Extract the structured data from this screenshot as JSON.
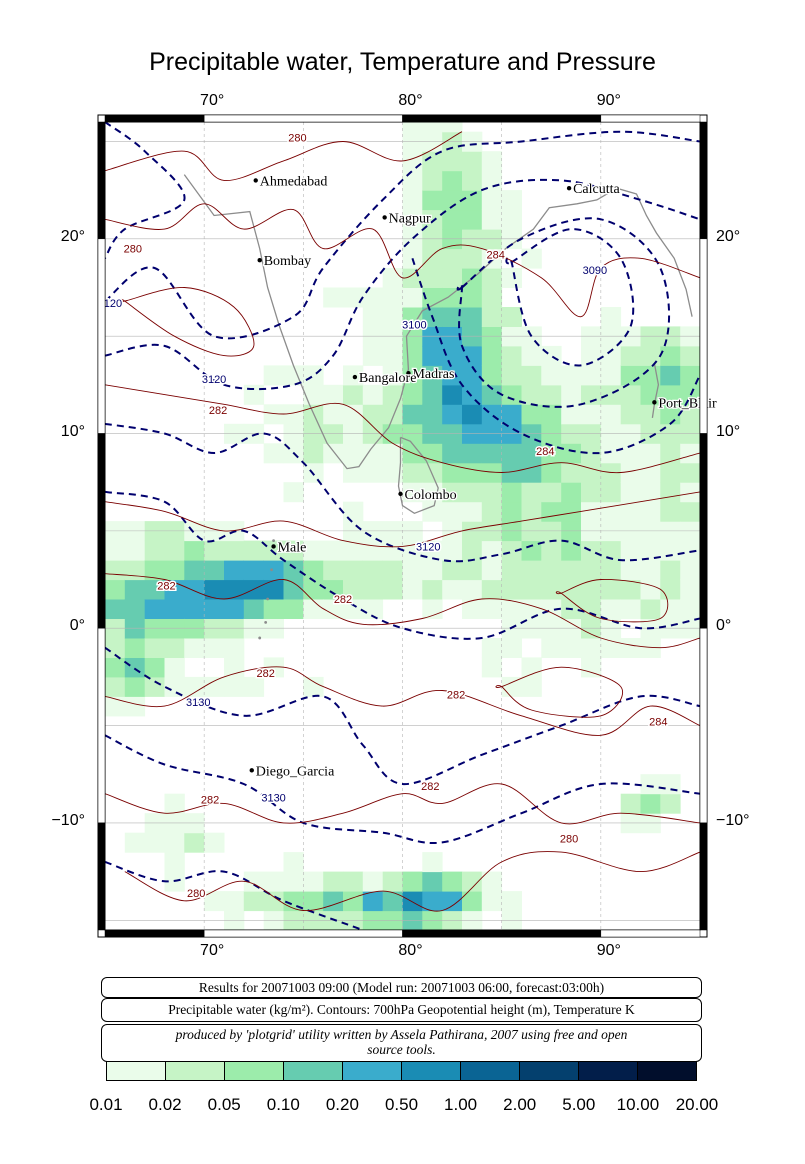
{
  "title": "Precipitable water, Temperature and Pressure",
  "map": {
    "lon_range": [
      65,
      95
    ],
    "lat_range": [
      -15.5,
      26
    ],
    "lon_ticks": [
      "70°",
      "80°",
      "90°"
    ],
    "lat_ticks": [
      "20°",
      "10°",
      "0°",
      "−10°"
    ],
    "grid": true,
    "cities": [
      {
        "name": "Ahmedabad",
        "lon": 72.6,
        "lat": 23.0
      },
      {
        "name": "Calcutta",
        "lon": 88.4,
        "lat": 22.6
      },
      {
        "name": "Nagpur",
        "lon": 79.1,
        "lat": 21.1
      },
      {
        "name": "Bombay",
        "lon": 72.8,
        "lat": 18.9
      },
      {
        "name": "Madras",
        "lon": 80.3,
        "lat": 13.1
      },
      {
        "name": "Bangalore",
        "lon": 77.6,
        "lat": 12.9
      },
      {
        "name": "Port_Blair",
        "lon": 92.7,
        "lat": 11.6
      },
      {
        "name": "Colombo",
        "lon": 79.9,
        "lat": 6.9
      },
      {
        "name": "Male",
        "lon": 73.5,
        "lat": 4.2
      },
      {
        "name": "Diego_Garcia",
        "lon": 72.4,
        "lat": -7.3
      }
    ],
    "contour_labels": [
      {
        "text": "280",
        "lon": 74.7,
        "lat": 25.0,
        "kind": "temp"
      },
      {
        "text": "280",
        "lon": 66.4,
        "lat": 19.3,
        "kind": "temp"
      },
      {
        "text": "284",
        "lon": 84.7,
        "lat": 19.0,
        "kind": "temp"
      },
      {
        "text": "3090",
        "lon": 89.7,
        "lat": 18.2,
        "kind": "height"
      },
      {
        "text": "3100",
        "lon": 80.6,
        "lat": 15.4,
        "kind": "height"
      },
      {
        "text": "3120",
        "lon": 70.5,
        "lat": 12.6,
        "kind": "height"
      },
      {
        "text": "282",
        "lon": 70.7,
        "lat": 11.0,
        "kind": "temp"
      },
      {
        "text": "284",
        "lon": 87.2,
        "lat": 8.9,
        "kind": "temp"
      },
      {
        "text": "3120",
        "lon": 81.3,
        "lat": 4.0,
        "kind": "height"
      },
      {
        "text": "282",
        "lon": 68.1,
        "lat": 2.0,
        "kind": "temp"
      },
      {
        "text": "282",
        "lon": 77.0,
        "lat": 1.3,
        "kind": "temp"
      },
      {
        "text": "282",
        "lon": 73.1,
        "lat": -2.5,
        "kind": "temp"
      },
      {
        "text": "282",
        "lon": 82.7,
        "lat": -3.6,
        "kind": "temp"
      },
      {
        "text": "3130",
        "lon": 69.7,
        "lat": -4.0,
        "kind": "height"
      },
      {
        "text": "284",
        "lon": 92.9,
        "lat": -5.0,
        "kind": "temp"
      },
      {
        "text": "282",
        "lon": 81.4,
        "lat": -8.3,
        "kind": "temp"
      },
      {
        "text": "3130",
        "lon": 73.5,
        "lat": -8.9,
        "kind": "height"
      },
      {
        "text": "282",
        "lon": 70.3,
        "lat": -9.0,
        "kind": "temp"
      },
      {
        "text": "280",
        "lon": 88.4,
        "lat": -11.0,
        "kind": "temp"
      },
      {
        "text": "280",
        "lon": 69.6,
        "lat": -13.8,
        "kind": "temp"
      },
      {
        "text": "120",
        "lon": 65.4,
        "lat": 16.5,
        "kind": "height"
      }
    ],
    "colors": {
      "temperature_contour": "#7a0000",
      "height_contour": "#00006e",
      "coastline": "#8c8c8c",
      "grid": "#b4b4b4"
    }
  },
  "info": {
    "results_line": "Results for 20071003 09:00 (Model run: 20071003 06:00, forecast:03:00h)",
    "legend_description": "Precipitable water (kg/m²).  Contours: 700hPa Geopotential height (m), Temperature K",
    "credit_line1": "produced by 'plotgrid' utility written by Assela Pathirana, 2007 using free and open",
    "credit_line2": "source tools."
  },
  "colorbar": {
    "labels": [
      "0.01",
      "0.02",
      "0.05",
      "0.10",
      "0.20",
      "0.50",
      "1.00",
      "2.00",
      "5.00",
      "10.00",
      "20.00"
    ],
    "colors": [
      "#eafcea",
      "#c6f4c6",
      "#9cecab",
      "#66ccb0",
      "#3aaccc",
      "#1a8cb4",
      "#0a6494",
      "#04406e",
      "#021e4a",
      "#010e2c",
      "#00040e"
    ]
  }
}
